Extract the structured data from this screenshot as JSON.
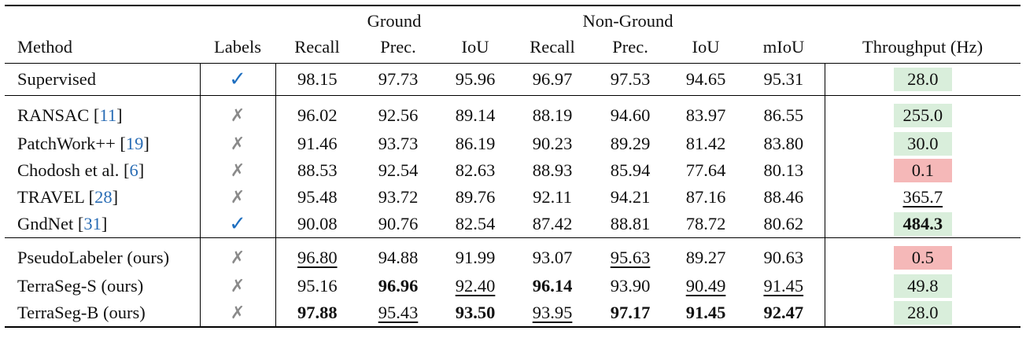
{
  "headers": {
    "group_ground": "Ground",
    "group_nonground": "Non-Ground",
    "method": "Method",
    "labels": "Labels",
    "recall": "Recall",
    "prec": "Prec.",
    "iou": "IoU",
    "miou": "mIoU",
    "throughput": "Throughput (Hz)"
  },
  "colors": {
    "green_cell": "#d9eedb",
    "red_cell": "#f5b8b8",
    "citation": "#2a6db5",
    "check": "#1f6fc0",
    "cross": "#8a8a8a"
  },
  "rows": [
    {
      "method": "Supervised",
      "cite": "",
      "labels": "✓",
      "g_recall": "98.15",
      "g_prec": "97.73",
      "g_iou": "95.96",
      "n_recall": "96.97",
      "n_prec": "97.53",
      "n_iou": "94.65",
      "miou": "95.31",
      "throughput": "28.0"
    },
    {
      "method": "RANSAC [",
      "cite": "11",
      "labels": "✗",
      "g_recall": "96.02",
      "g_prec": "92.56",
      "g_iou": "89.14",
      "n_recall": "88.19",
      "n_prec": "94.60",
      "n_iou": "83.97",
      "miou": "86.55",
      "throughput": "255.0"
    },
    {
      "method": "PatchWork++ [",
      "cite": "19",
      "labels": "✗",
      "g_recall": "91.46",
      "g_prec": "93.73",
      "g_iou": "86.19",
      "n_recall": "90.23",
      "n_prec": "89.29",
      "n_iou": "81.42",
      "miou": "83.80",
      "throughput": "30.0"
    },
    {
      "method": "Chodosh et al. [",
      "cite": "6",
      "labels": "✗",
      "g_recall": "88.53",
      "g_prec": "92.54",
      "g_iou": "82.63",
      "n_recall": "88.93",
      "n_prec": "85.94",
      "n_iou": "77.64",
      "miou": "80.13",
      "throughput": "0.1"
    },
    {
      "method": "TRAVEL [",
      "cite": "28",
      "labels": "✗",
      "g_recall": "95.48",
      "g_prec": "93.72",
      "g_iou": "89.76",
      "n_recall": "92.11",
      "n_prec": "94.21",
      "n_iou": "87.16",
      "miou": "88.46",
      "throughput": "365.7"
    },
    {
      "method": "GndNet [",
      "cite": "31",
      "labels": "✓",
      "g_recall": "90.08",
      "g_prec": "90.76",
      "g_iou": "82.54",
      "n_recall": "87.42",
      "n_prec": "88.81",
      "n_iou": "78.72",
      "miou": "80.62",
      "throughput": "484.3"
    },
    {
      "method": "PseudoLabeler (ours)",
      "cite": "",
      "labels": "✗",
      "g_recall": "96.80",
      "g_prec": "94.88",
      "g_iou": "91.99",
      "n_recall": "93.07",
      "n_prec": "95.63",
      "n_iou": "89.27",
      "miou": "90.63",
      "throughput": "0.5"
    },
    {
      "method": "TerraSeg-S (ours)",
      "cite": "",
      "labels": "✗",
      "g_recall": "95.16",
      "g_prec": "96.96",
      "g_iou": "92.40",
      "n_recall": "96.14",
      "n_prec": "93.90",
      "n_iou": "90.49",
      "miou": "91.45",
      "throughput": "49.8"
    },
    {
      "method": "TerraSeg-B (ours)",
      "cite": "",
      "labels": "✗",
      "g_recall": "97.88",
      "g_prec": "95.43",
      "g_iou": "93.50",
      "n_recall": "93.95",
      "n_prec": "97.17",
      "n_iou": "91.45",
      "miou": "92.47",
      "throughput": "28.0"
    }
  ]
}
